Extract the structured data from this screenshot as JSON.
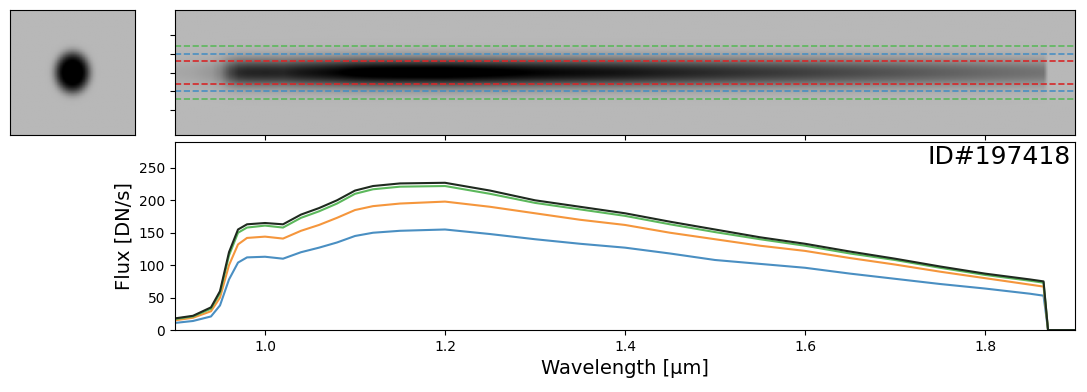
{
  "chart_data": {
    "type": "line",
    "annotation": "ID#197418",
    "x_label": "Wavelength [μm]",
    "y_label": "Flux [DN/s]",
    "x": [
      0.9,
      0.92,
      0.94,
      0.95,
      0.96,
      0.97,
      0.98,
      1.0,
      1.02,
      1.04,
      1.06,
      1.08,
      1.1,
      1.12,
      1.15,
      1.2,
      1.25,
      1.3,
      1.35,
      1.4,
      1.45,
      1.5,
      1.55,
      1.6,
      1.65,
      1.7,
      1.75,
      1.8,
      1.85,
      1.865,
      1.87,
      1.9
    ],
    "series": [
      {
        "color": "#4a8fc2",
        "values": [
          11,
          14,
          21,
          38,
          78,
          104,
          112,
          113,
          110,
          120,
          127,
          135,
          145,
          150,
          153,
          155,
          148,
          140,
          133,
          127,
          118,
          108,
          102,
          96,
          87,
          79,
          71,
          64,
          56,
          53,
          0,
          0
        ]
      },
      {
        "color": "#f5963c",
        "values": [
          15,
          19,
          29,
          50,
          100,
          132,
          142,
          144,
          141,
          153,
          162,
          173,
          185,
          191,
          195,
          198,
          190,
          180,
          170,
          162,
          150,
          140,
          130,
          122,
          111,
          101,
          90,
          80,
          70,
          67,
          0,
          0
        ]
      },
      {
        "color": "#5cb85c",
        "values": [
          17,
          21,
          33,
          57,
          115,
          150,
          158,
          161,
          158,
          173,
          183,
          195,
          210,
          217,
          221,
          222,
          210,
          196,
          186,
          176,
          163,
          151,
          140,
          130,
          118,
          108,
          96,
          85,
          76,
          73,
          0,
          0
        ]
      },
      {
        "color": "#1f2a1f",
        "values": [
          18,
          22,
          35,
          60,
          120,
          155,
          163,
          165,
          163,
          178,
          188,
          200,
          215,
          222,
          226,
          227,
          215,
          200,
          190,
          180,
          167,
          155,
          143,
          133,
          121,
          110,
          98,
          87,
          78,
          75,
          0,
          0
        ]
      }
    ],
    "xlim": [
      0.9,
      1.9
    ],
    "xticks": [
      1.0,
      1.2,
      1.4,
      1.6,
      1.8
    ],
    "ylim": [
      0,
      290
    ],
    "yticks": [
      0,
      50,
      100,
      150,
      200,
      250
    ],
    "grid": false
  }
}
